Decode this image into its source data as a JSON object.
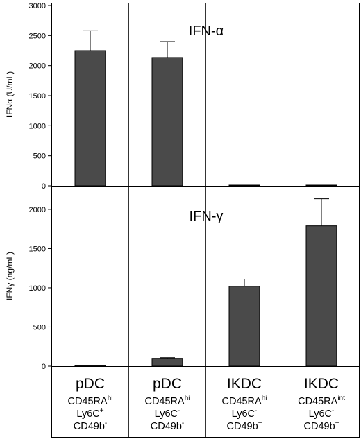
{
  "chart_data": [
    {
      "type": "bar",
      "title": "IFN-α",
      "ylabel": "IFNα (U/mL)",
      "ylim": [
        0,
        3000
      ],
      "yticks": [
        "0",
        "500",
        "1000",
        "1500",
        "2000",
        "2500",
        "3000"
      ],
      "categories": [
        "pDC CD45RAhi Ly6C+ CD49b-",
        "pDC CD45RAhi Ly6C- CD49b-",
        "IKDC CD45RAhi Ly6C- CD49b+",
        "IKDC CD45RAint Ly6C- CD49b+"
      ],
      "values": [
        2250,
        2135,
        10,
        10
      ],
      "errors": [
        330,
        265,
        0,
        0
      ],
      "grid": false,
      "bar_color": "#4a4a4a"
    },
    {
      "type": "bar",
      "title": "IFN-γ",
      "ylabel": "IFNγ (ng/mL)",
      "ylim": [
        0,
        2300
      ],
      "yticks": [
        "0",
        "500",
        "1000",
        "1500",
        "2000"
      ],
      "categories": [
        "pDC CD45RAhi Ly6C+ CD49b-",
        "pDC CD45RAhi Ly6C- CD49b-",
        "IKDC CD45RAhi Ly6C- CD49b+",
        "IKDC CD45RAint Ly6C- CD49b+"
      ],
      "values": [
        10,
        100,
        1020,
        1790
      ],
      "errors": [
        0,
        8,
        90,
        345
      ],
      "grid": false,
      "bar_color": "#4a4a4a"
    }
  ],
  "groups": [
    {
      "cell": "pDC",
      "line1": "CD45RA",
      "sup1": "hi",
      "line2": "Ly6C",
      "sup2": "+",
      "line3": "CD49b",
      "sup3": "-"
    },
    {
      "cell": "pDC",
      "line1": "CD45RA",
      "sup1": "hi",
      "line2": "Ly6C",
      "sup2": "-",
      "line3": "CD49b",
      "sup3": "-"
    },
    {
      "cell": "IKDC",
      "line1": "CD45RA",
      "sup1": "hi",
      "line2": "Ly6C",
      "sup2": "-",
      "line3": "CD49b",
      "sup3": "+"
    },
    {
      "cell": "IKDC",
      "line1": "CD45RA",
      "sup1": "int",
      "line2": "Ly6C",
      "sup2": "-",
      "line3": "CD49b",
      "sup3": "+"
    }
  ]
}
